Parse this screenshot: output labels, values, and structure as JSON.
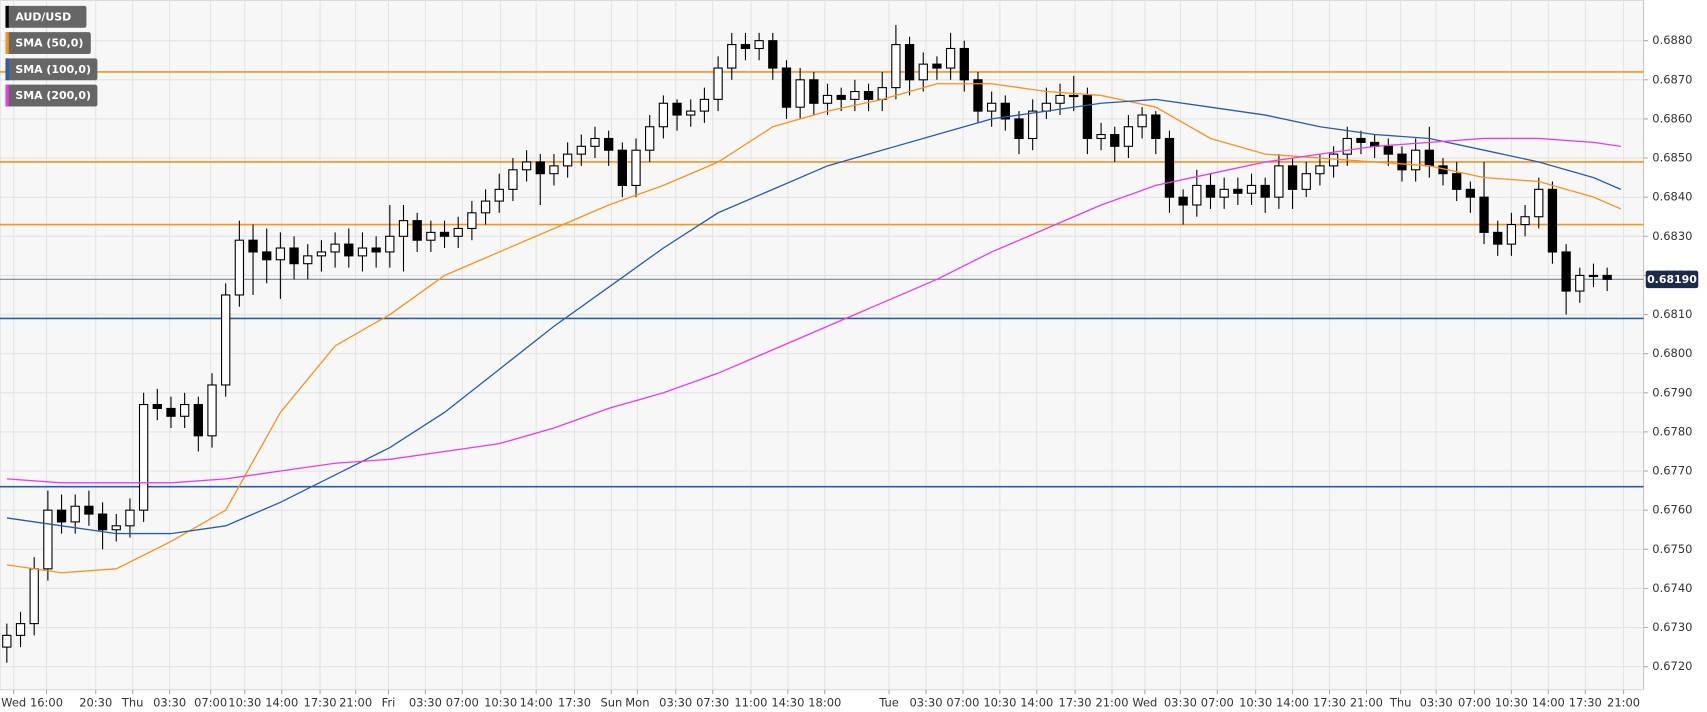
{
  "chart_data": {
    "type": "candlestick",
    "series": [
      {
        "name": "AUD/USD",
        "color": "#000000",
        "open": [
          0.6725,
          0.6728,
          0.6731,
          0.6745,
          0.676,
          0.6757,
          0.6761,
          0.6759,
          0.6755,
          0.6756,
          0.676,
          0.6787,
          0.6786,
          0.6784,
          0.6787,
          0.6779,
          0.6792,
          0.6815,
          0.6829,
          0.6826,
          0.6824,
          0.6827,
          0.6823,
          0.6825,
          0.6826,
          0.6828,
          0.6825,
          0.6827,
          0.6826,
          0.683,
          0.6834,
          0.6829,
          0.6831,
          0.683,
          0.6832,
          0.6836,
          0.6839,
          0.6842,
          0.6847,
          0.6849,
          0.6846,
          0.6848,
          0.6851,
          0.6853,
          0.6855,
          0.6852,
          0.6843,
          0.6852,
          0.6858,
          0.6864,
          0.6861,
          0.6862,
          0.6865,
          0.6873,
          0.6879,
          0.6878,
          0.688,
          0.6873,
          0.6863,
          0.687,
          0.6864,
          0.6866,
          0.6865,
          0.6867,
          0.6865,
          0.6868,
          0.6879,
          0.687,
          0.6874,
          0.6873,
          0.6878,
          0.687,
          0.6862,
          0.6864,
          0.686,
          0.6855,
          0.6862,
          0.6864,
          0.6866,
          0.6866,
          0.6855,
          0.6856,
          0.6853,
          0.6858,
          0.6861,
          0.6855,
          0.684,
          0.6838,
          0.6843,
          0.684,
          0.6842,
          0.6841,
          0.6843,
          0.684,
          0.6848,
          0.6842,
          0.6846,
          0.6848,
          0.6851,
          0.6855,
          0.6854,
          0.6853,
          0.6851,
          0.6847,
          0.6852,
          0.6848,
          0.6846,
          0.6842,
          0.684,
          0.6831,
          0.6828,
          0.6833,
          0.6835,
          0.6842,
          0.6826,
          0.6816,
          0.682,
          0.682
        ],
        "high": [
          0.6731,
          0.6734,
          0.6748,
          0.6765,
          0.6764,
          0.6764,
          0.6765,
          0.6762,
          0.6759,
          0.6763,
          0.679,
          0.6791,
          0.6789,
          0.679,
          0.6789,
          0.6795,
          0.6818,
          0.6834,
          0.6833,
          0.6832,
          0.6831,
          0.683,
          0.6828,
          0.6829,
          0.6831,
          0.6832,
          0.6831,
          0.683,
          0.6838,
          0.6838,
          0.6836,
          0.6834,
          0.6834,
          0.6835,
          0.6839,
          0.6842,
          0.6846,
          0.685,
          0.6852,
          0.6851,
          0.6851,
          0.6854,
          0.6856,
          0.6858,
          0.6857,
          0.6854,
          0.6855,
          0.6861,
          0.6866,
          0.6865,
          0.6865,
          0.6868,
          0.6876,
          0.6882,
          0.6882,
          0.6882,
          0.6882,
          0.6875,
          0.6873,
          0.6872,
          0.6869,
          0.6868,
          0.687,
          0.6869,
          0.6872,
          0.6884,
          0.6881,
          0.6877,
          0.6876,
          0.6882,
          0.688,
          0.6872,
          0.6867,
          0.6866,
          0.6862,
          0.6865,
          0.6868,
          0.6869,
          0.6871,
          0.6868,
          0.6859,
          0.6858,
          0.6861,
          0.6863,
          0.6862,
          0.6857,
          0.6842,
          0.6847,
          0.6846,
          0.6845,
          0.6845,
          0.6846,
          0.6845,
          0.6851,
          0.685,
          0.6849,
          0.6851,
          0.6853,
          0.6858,
          0.6857,
          0.6856,
          0.6855,
          0.6853,
          0.6855,
          0.6858,
          0.685,
          0.6849,
          0.6844,
          0.6849,
          0.6834,
          0.6836,
          0.6838,
          0.6845,
          0.6844,
          0.6828,
          0.6822,
          0.6823,
          0.6822
        ],
        "low": [
          0.6721,
          0.6725,
          0.6728,
          0.6742,
          0.6754,
          0.6754,
          0.6756,
          0.675,
          0.6752,
          0.6753,
          0.6757,
          0.6783,
          0.6781,
          0.6781,
          0.6775,
          0.6776,
          0.6789,
          0.6812,
          0.6815,
          0.6818,
          0.6814,
          0.6819,
          0.6819,
          0.6821,
          0.6822,
          0.6822,
          0.6821,
          0.6822,
          0.6822,
          0.6821,
          0.6826,
          0.6826,
          0.6827,
          0.6827,
          0.6829,
          0.6833,
          0.6836,
          0.6839,
          0.6844,
          0.6838,
          0.6843,
          0.6845,
          0.6848,
          0.685,
          0.6848,
          0.684,
          0.684,
          0.6849,
          0.6855,
          0.6857,
          0.6858,
          0.6859,
          0.6862,
          0.687,
          0.6875,
          0.6875,
          0.687,
          0.686,
          0.686,
          0.6861,
          0.6861,
          0.6862,
          0.6862,
          0.6862,
          0.6862,
          0.6865,
          0.6866,
          0.6867,
          0.687,
          0.687,
          0.6867,
          0.6859,
          0.6858,
          0.6857,
          0.6851,
          0.6852,
          0.686,
          0.6861,
          0.6862,
          0.6851,
          0.6852,
          0.6849,
          0.685,
          0.6855,
          0.6851,
          0.6836,
          0.6833,
          0.6835,
          0.6837,
          0.6837,
          0.6838,
          0.6838,
          0.6836,
          0.6837,
          0.6837,
          0.684,
          0.6843,
          0.6845,
          0.6848,
          0.6851,
          0.685,
          0.6848,
          0.6844,
          0.6844,
          0.6845,
          0.6843,
          0.6839,
          0.6836,
          0.6828,
          0.6825,
          0.6825,
          0.683,
          0.6832,
          0.6823,
          0.681,
          0.6813,
          0.6817,
          0.6816
        ],
        "close": [
          0.6728,
          0.6731,
          0.6745,
          0.676,
          0.6757,
          0.6761,
          0.6759,
          0.6755,
          0.6756,
          0.676,
          0.6787,
          0.6786,
          0.6784,
          0.6787,
          0.6779,
          0.6792,
          0.6815,
          0.6829,
          0.6826,
          0.6824,
          0.6827,
          0.6823,
          0.6825,
          0.6826,
          0.6828,
          0.6825,
          0.6827,
          0.6826,
          0.683,
          0.6834,
          0.6829,
          0.6831,
          0.683,
          0.6832,
          0.6836,
          0.6839,
          0.6842,
          0.6847,
          0.6849,
          0.6846,
          0.6848,
          0.6851,
          0.6853,
          0.6855,
          0.6852,
          0.6843,
          0.6852,
          0.6858,
          0.6864,
          0.6861,
          0.6862,
          0.6865,
          0.6873,
          0.6879,
          0.6878,
          0.688,
          0.6873,
          0.6863,
          0.687,
          0.6864,
          0.6866,
          0.6865,
          0.6867,
          0.6865,
          0.6868,
          0.6879,
          0.687,
          0.6874,
          0.6873,
          0.6878,
          0.687,
          0.6862,
          0.6864,
          0.686,
          0.6855,
          0.6862,
          0.6864,
          0.6866,
          0.6866,
          0.6855,
          0.6856,
          0.6853,
          0.6858,
          0.6861,
          0.6855,
          0.684,
          0.6838,
          0.6843,
          0.684,
          0.6842,
          0.6841,
          0.6843,
          0.684,
          0.6848,
          0.6842,
          0.6846,
          0.6848,
          0.6851,
          0.6855,
          0.6854,
          0.6853,
          0.6851,
          0.6847,
          0.6852,
          0.6848,
          0.6846,
          0.6842,
          0.684,
          0.6831,
          0.6828,
          0.6833,
          0.6835,
          0.6842,
          0.6826,
          0.6816,
          0.682,
          0.682,
          0.6819
        ]
      },
      {
        "name": "SMA (50,0)",
        "color": "#f7931e",
        "type": "line",
        "x": [
          0,
          4,
          8,
          12,
          16,
          20,
          24,
          28,
          32,
          36,
          40,
          44,
          48,
          52,
          56,
          60,
          64,
          68,
          72,
          76,
          80,
          84,
          88,
          92,
          96,
          100,
          104,
          108,
          112,
          116,
          118
        ],
        "values": [
          0.6746,
          0.6744,
          0.6745,
          0.6752,
          0.676,
          0.6785,
          0.6802,
          0.681,
          0.682,
          0.6826,
          0.6832,
          0.6838,
          0.6843,
          0.6849,
          0.6858,
          0.6862,
          0.6865,
          0.6869,
          0.6869,
          0.6867,
          0.6866,
          0.6863,
          0.6855,
          0.6851,
          0.685,
          0.6849,
          0.6848,
          0.6845,
          0.6844,
          0.684,
          0.6837
        ]
      },
      {
        "name": "SMA (100,0)",
        "color": "#2a5caa",
        "type": "line",
        "x": [
          0,
          4,
          8,
          12,
          16,
          20,
          24,
          28,
          32,
          36,
          40,
          44,
          48,
          52,
          56,
          60,
          64,
          68,
          72,
          76,
          80,
          84,
          88,
          92,
          96,
          100,
          104,
          108,
          112,
          116,
          118
        ],
        "values": [
          0.6758,
          0.6756,
          0.6754,
          0.6754,
          0.6756,
          0.6762,
          0.6769,
          0.6776,
          0.6785,
          0.6796,
          0.6807,
          0.6817,
          0.6827,
          0.6836,
          0.6842,
          0.6848,
          0.6852,
          0.6856,
          0.686,
          0.6862,
          0.6864,
          0.6865,
          0.6863,
          0.6861,
          0.6858,
          0.6856,
          0.6855,
          0.6852,
          0.6849,
          0.6845,
          0.6842
        ]
      },
      {
        "name": "SMA (200,0)",
        "color": "#e63ee6",
        "type": "line",
        "x": [
          0,
          4,
          8,
          12,
          16,
          20,
          24,
          28,
          32,
          36,
          40,
          44,
          48,
          52,
          56,
          60,
          64,
          68,
          72,
          76,
          80,
          84,
          88,
          92,
          96,
          100,
          104,
          108,
          112,
          116,
          118
        ],
        "values": [
          0.6768,
          0.6767,
          0.6767,
          0.6767,
          0.6768,
          0.677,
          0.6772,
          0.6773,
          0.6775,
          0.6777,
          0.6781,
          0.6786,
          0.679,
          0.6795,
          0.6801,
          0.6807,
          0.6813,
          0.6819,
          0.6826,
          0.6832,
          0.6838,
          0.6843,
          0.6846,
          0.6849,
          0.6851,
          0.6853,
          0.6854,
          0.6855,
          0.6855,
          0.6854,
          0.6853
        ]
      }
    ],
    "hlines": [
      {
        "value": 0.6872,
        "color": "#f7931e"
      },
      {
        "value": 0.6849,
        "color": "#f7931e"
      },
      {
        "value": 0.6833,
        "color": "#f7931e"
      },
      {
        "value": 0.6809,
        "color": "#2a5caa"
      },
      {
        "value": 0.6766,
        "color": "#2a5caa"
      }
    ],
    "last_price": {
      "value": 0.6819,
      "label": "0.68190",
      "color": "#1e2b48"
    },
    "xlim": [
      -0.5,
      119.66
    ],
    "xticks": [
      {
        "value": 0.5,
        "label": "Wed"
      },
      {
        "value": 2.9,
        "label": "16:00"
      },
      {
        "value": 6.5,
        "label": "20:30"
      },
      {
        "value": 9.2,
        "label": "Thu"
      },
      {
        "value": 11.9,
        "label": "03:30"
      },
      {
        "value": 14.9,
        "label": "07:00"
      },
      {
        "value": 17.4,
        "label": "10:30"
      },
      {
        "value": 20.1,
        "label": "14:00"
      },
      {
        "value": 22.9,
        "label": "17:30"
      },
      {
        "value": 25.5,
        "label": "21:00"
      },
      {
        "value": 27.9,
        "label": "Fri"
      },
      {
        "value": 30.6,
        "label": "03:30"
      },
      {
        "value": 33.3,
        "label": "07:00"
      },
      {
        "value": 36.1,
        "label": "10:30"
      },
      {
        "value": 38.7,
        "label": "14:00"
      },
      {
        "value": 41.5,
        "label": "17:30"
      },
      {
        "value": 44.2,
        "label": "Sun"
      },
      {
        "value": 46.1,
        "label": "Mon"
      },
      {
        "value": 48.9,
        "label": "03:30"
      },
      {
        "value": 51.6,
        "label": "07:30"
      },
      {
        "value": 54.4,
        "label": "11:00"
      },
      {
        "value": 57.1,
        "label": "14:30"
      },
      {
        "value": 59.8,
        "label": "18:00"
      },
      {
        "value": 64.5,
        "label": "Tue"
      },
      {
        "value": 67.2,
        "label": "03:30"
      },
      {
        "value": 69.9,
        "label": "07:00"
      },
      {
        "value": 72.6,
        "label": "10:30"
      },
      {
        "value": 75.3,
        "label": "14:00"
      },
      {
        "value": 78.1,
        "label": "17:30"
      },
      {
        "value": 80.8,
        "label": "21:00"
      },
      {
        "value": 83.2,
        "label": "Wed"
      },
      {
        "value": 85.8,
        "label": "03:30"
      },
      {
        "value": 88.5,
        "label": "07:00"
      },
      {
        "value": 91.3,
        "label": "10:30"
      },
      {
        "value": 94,
        "label": "14:00"
      },
      {
        "value": 96.7,
        "label": "17:30"
      },
      {
        "value": 99.4,
        "label": "21:00"
      },
      {
        "value": 101.9,
        "label": "Thu"
      },
      {
        "value": 104.5,
        "label": "03:30"
      },
      {
        "value": 107.3,
        "label": "07:00"
      },
      {
        "value": 110,
        "label": "10:30"
      },
      {
        "value": 112.7,
        "label": "14:00"
      },
      {
        "value": 115.4,
        "label": "17:30"
      },
      {
        "value": 118.2,
        "label": "21:00"
      }
    ],
    "ylim": [
      0.67141,
      0.68903
    ],
    "yticks": [
      {
        "value": 0.672,
        "label": "0.6720"
      },
      {
        "value": 0.673,
        "label": "0.6730"
      },
      {
        "value": 0.674,
        "label": "0.6740"
      },
      {
        "value": 0.675,
        "label": "0.6750"
      },
      {
        "value": 0.676,
        "label": "0.6760"
      },
      {
        "value": 0.677,
        "label": "0.6770"
      },
      {
        "value": 0.678,
        "label": "0.6780"
      },
      {
        "value": 0.679,
        "label": "0.6790"
      },
      {
        "value": 0.68,
        "label": "0.6800"
      },
      {
        "value": 0.681,
        "label": "0.6810"
      },
      {
        "value": 0.682,
        "label": "0.6820"
      },
      {
        "value": 0.683,
        "label": "0.6830"
      },
      {
        "value": 0.684,
        "label": "0.6840"
      },
      {
        "value": 0.685,
        "label": "0.6850"
      },
      {
        "value": 0.686,
        "label": "0.6860"
      },
      {
        "value": 0.687,
        "label": "0.6870"
      },
      {
        "value": 0.688,
        "label": "0.6880"
      }
    ],
    "grid": true,
    "legend": "upper left",
    "up_color": "#ffffff",
    "down_color": "#000000"
  }
}
